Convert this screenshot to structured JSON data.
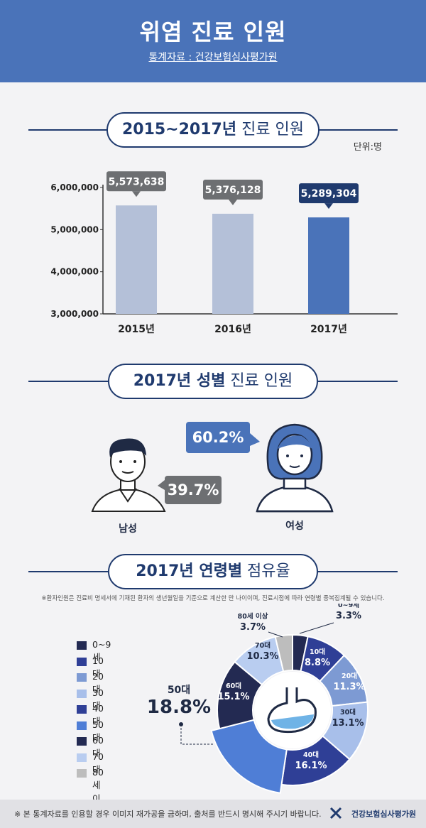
{
  "header": {
    "title": "위염 진료 인원",
    "source": "통계자료 : 건강보험심사평가원"
  },
  "section1": {
    "title_bold": "2015~2017년",
    "title_light": " 진료 인원",
    "unit": "단위:명"
  },
  "section2": {
    "title_bold": "2017년 성별",
    "title_light": " 진료 인원"
  },
  "section3": {
    "title_bold": "2017년 연령별",
    "title_light": " 점유율",
    "note": "※환자인원은 진료비 명세서에 기재된 환자의 생년월일을 기준으로 계산한 만 나이이며, 진료시점에 따라 연령별 중복집계될 수 있습니다."
  },
  "footer": {
    "note": "※ 본 통계자료를 인용할 경우 이미지 재가공을 금하며, 출처를 반드시 명시해 주시기 바랍니다.",
    "org": "건강보험심사평가원"
  },
  "colors": {
    "header": "#4a73b9",
    "navy": "#1f3a6e",
    "bar_light": "#b4c0d8",
    "bar_dark": "#4a73b9",
    "callout_gray": "#6d6f72",
    "callout_dark": "#1f3a6e"
  },
  "chart_data": [
    {
      "type": "bar",
      "categories": [
        "2015년",
        "2016년",
        "2017년"
      ],
      "values": [
        5573638,
        5376128,
        5289304
      ],
      "value_labels": [
        "5,573,638",
        "5,376,128",
        "5,289,304"
      ],
      "yticks": [
        "6,000,000",
        "5,000,000",
        "4,000,000",
        "3,000,000"
      ],
      "ytick_values": [
        6000000,
        5000000,
        4000000,
        3000000
      ],
      "ylim": [
        3000000,
        6000000
      ],
      "grid": false
    },
    {
      "type": "bar",
      "categories": [
        "남성",
        "여성"
      ],
      "values": [
        39.7,
        60.2
      ],
      "value_labels": [
        "39.7%",
        "60.2%"
      ]
    },
    {
      "type": "pie",
      "labels": [
        "0~9세",
        "10대",
        "20대",
        "30대",
        "40대",
        "50대",
        "60대",
        "70대",
        "80세 이상"
      ],
      "values": [
        3.3,
        8.8,
        11.3,
        13.1,
        16.1,
        18.8,
        15.1,
        10.3,
        3.7
      ],
      "value_labels": [
        "3.3%",
        "8.8%",
        "11.3%",
        "13.1%",
        "16.1%",
        "18.8%",
        "15.1%",
        "10.3%",
        "3.7%"
      ],
      "colors": [
        "#232a52",
        "#2f3f96",
        "#7d9ad3",
        "#a8bfea",
        "#2f3f96",
        "#4f7ed6",
        "#232a52",
        "#b9cdf0",
        "#bdbdbd"
      ],
      "legend_position": "left"
    }
  ]
}
